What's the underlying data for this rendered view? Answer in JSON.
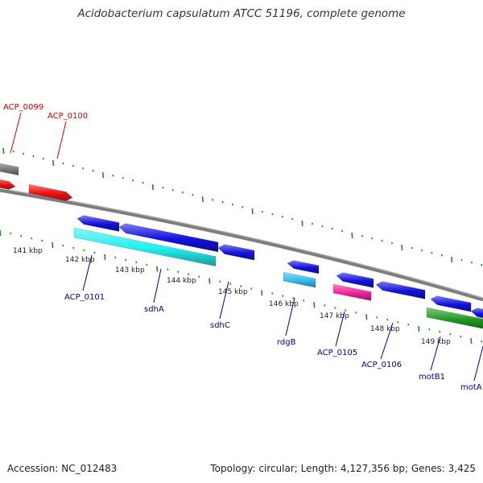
{
  "title": "Acidobacterium capsulatum ATCC 51196, complete genome",
  "footer": {
    "accession": "Accession: NC_012483",
    "topology": "Topology: circular; Length: 4,127,356 bp; Genes: 3,425"
  },
  "colors": {
    "backbone": "#8a8a8a",
    "forward_gene": "#ee1111",
    "reverse_gene": "#1111dd",
    "cyan_feature": "#22eeee",
    "light_blue_feature": "#33bbee",
    "pink_feature": "#ee2299",
    "green_feature": "#229922",
    "tick": "#228822",
    "red_label": "#cc0000",
    "blue_label": "#000099"
  },
  "scale": {
    "unit": "kbp",
    "ticks": [
      "141 kbp",
      "142 kbp",
      "143 kbp",
      "144 kbp",
      "145 kbp",
      "146 kbp",
      "147 kbp",
      "148 kbp",
      "149 kbp"
    ]
  },
  "gene_labels": {
    "red": [
      "ACP_0099",
      "ACP_0100"
    ],
    "blue": [
      "ACP_0101",
      "sdhA",
      "sdhC",
      "rdgB",
      "ACP_0105",
      "ACP_0106",
      "motB1",
      "motA"
    ]
  }
}
